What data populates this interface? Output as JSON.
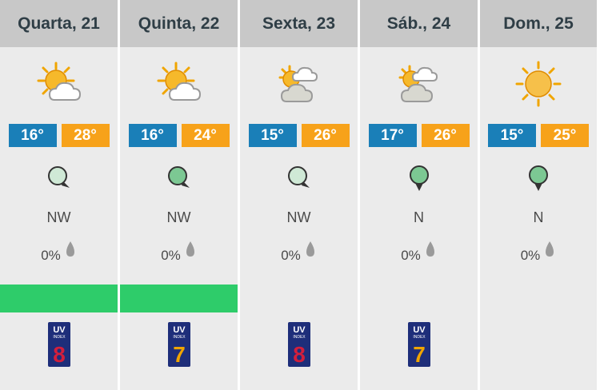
{
  "days": [
    {
      "label": "Quarta, 21",
      "icon": "sun-cloud-icon",
      "min_temp": "16°",
      "max_temp": "28°",
      "wind_icon": "wind-marker-light",
      "wind_dir": "NW",
      "precip": "0%",
      "green_bar": true,
      "uv_header": "UV",
      "uv_sub": "INDEX",
      "uv_value": "8",
      "uv_color": "#d21f3c"
    },
    {
      "label": "Quinta, 22",
      "icon": "sun-cloud-icon",
      "min_temp": "16°",
      "max_temp": "24°",
      "wind_icon": "wind-marker-medium",
      "wind_dir": "NW",
      "precip": "0%",
      "green_bar": true,
      "uv_header": "UV",
      "uv_sub": "INDEX",
      "uv_value": "7",
      "uv_color": "#f0a500"
    },
    {
      "label": "Sexta, 23",
      "icon": "cloudy-sun-icon",
      "min_temp": "15°",
      "max_temp": "26°",
      "wind_icon": "wind-marker-light",
      "wind_dir": "NW",
      "precip": "0%",
      "green_bar": false,
      "uv_header": "UV",
      "uv_sub": "INDEX",
      "uv_value": "8",
      "uv_color": "#d21f3c"
    },
    {
      "label": "Sáb., 24",
      "icon": "cloudy-sun-icon",
      "min_temp": "17°",
      "max_temp": "26°",
      "wind_icon": "wind-marker-down",
      "wind_dir": "N",
      "precip": "0%",
      "green_bar": false,
      "uv_header": "UV",
      "uv_sub": "INDEX",
      "uv_value": "7",
      "uv_color": "#f0a500"
    },
    {
      "label": "Dom., 25",
      "icon": "sun-icon",
      "min_temp": "15°",
      "max_temp": "25°",
      "wind_icon": "wind-marker-down",
      "wind_dir": "N",
      "precip": "0%",
      "green_bar": false,
      "uv_header": "",
      "uv_sub": "",
      "uv_value": "",
      "uv_color": ""
    }
  ],
  "colors": {
    "header_bg": "#c8c8c8",
    "panel_bg": "#ebebeb",
    "min_temp_bg": "#1a7fb8",
    "max_temp_bg": "#f7a21a",
    "green_bar": "#2ecc6a"
  }
}
